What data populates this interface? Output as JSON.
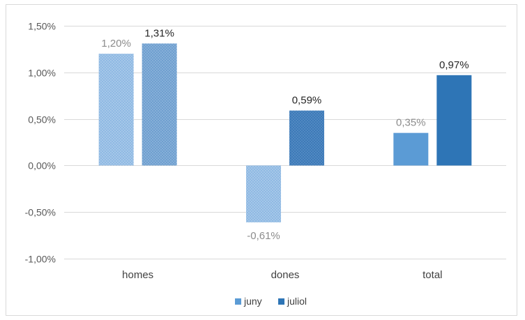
{
  "chart_data": {
    "type": "bar",
    "categories": [
      "homes",
      "dones",
      "total"
    ],
    "series": [
      {
        "name": "juny",
        "values": [
          1.2,
          -0.61,
          0.35
        ],
        "labels": [
          "1,20%",
          "-0,61%",
          "0,35%"
        ],
        "color": "#5b9bd5"
      },
      {
        "name": "juliol",
        "values": [
          1.31,
          0.59,
          0.97
        ],
        "labels": [
          "1,31%",
          "0,59%",
          "0,97%"
        ],
        "color": "#2e75b6"
      }
    ],
    "ylim": [
      -1.0,
      1.5
    ],
    "yticks": [
      1.5,
      1.0,
      0.5,
      0.0,
      -0.5,
      -1.0
    ],
    "ytick_labels": [
      "1,50%",
      "1,00%",
      "0,50%",
      "0,00%",
      "-0,50%",
      "-1,00%"
    ],
    "grid": true,
    "legend_position": "bottom"
  }
}
